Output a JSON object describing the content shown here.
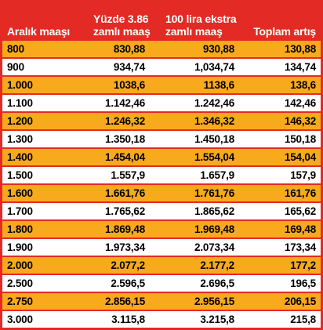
{
  "table": {
    "header": [
      [
        "Aralık maaşı"
      ],
      [
        "Yüzde 3.86",
        "zamlı maaş"
      ],
      [
        "100 lira ekstra",
        "zamlı maaş"
      ],
      [
        "Toplam artış"
      ]
    ],
    "rows": [
      [
        "800",
        "830,88",
        "930,88",
        "130,88"
      ],
      [
        "900",
        "934,74",
        "1,034,74",
        "134,74"
      ],
      [
        "1.000",
        "1038,6",
        "1138,6",
        "138,6"
      ],
      [
        "1.100",
        "1.142,46",
        "1.242,46",
        "142,46"
      ],
      [
        "1.200",
        "1.246,32",
        "1.346,32",
        "146,32"
      ],
      [
        "1.300",
        "1.350,18",
        "1.450,18",
        "150,18"
      ],
      [
        "1.400",
        "1.454,04",
        "1.554,04",
        "154,04"
      ],
      [
        "1.500",
        "1.557,9",
        "1.657,9",
        "157,9"
      ],
      [
        "1.600",
        "1.661,76",
        "1.761,76",
        "161,76"
      ],
      [
        "1.700",
        "1.765,62",
        "1.865,62",
        "165,62"
      ],
      [
        "1.800",
        "1.869,48",
        "1.969,48",
        "169,48"
      ],
      [
        "1.900",
        "1.973,34",
        "2.073,34",
        "173,34"
      ],
      [
        "2.000",
        "2.077,2",
        "2.177,2",
        "177,2"
      ],
      [
        "2.500",
        "2.596,5",
        "2.696,5",
        "196,5"
      ],
      [
        "2.750",
        "2.856,15",
        "2.956,15",
        "206,15"
      ],
      [
        "3.000",
        "3.115,8",
        "3.215,8",
        "215,8"
      ]
    ]
  }
}
